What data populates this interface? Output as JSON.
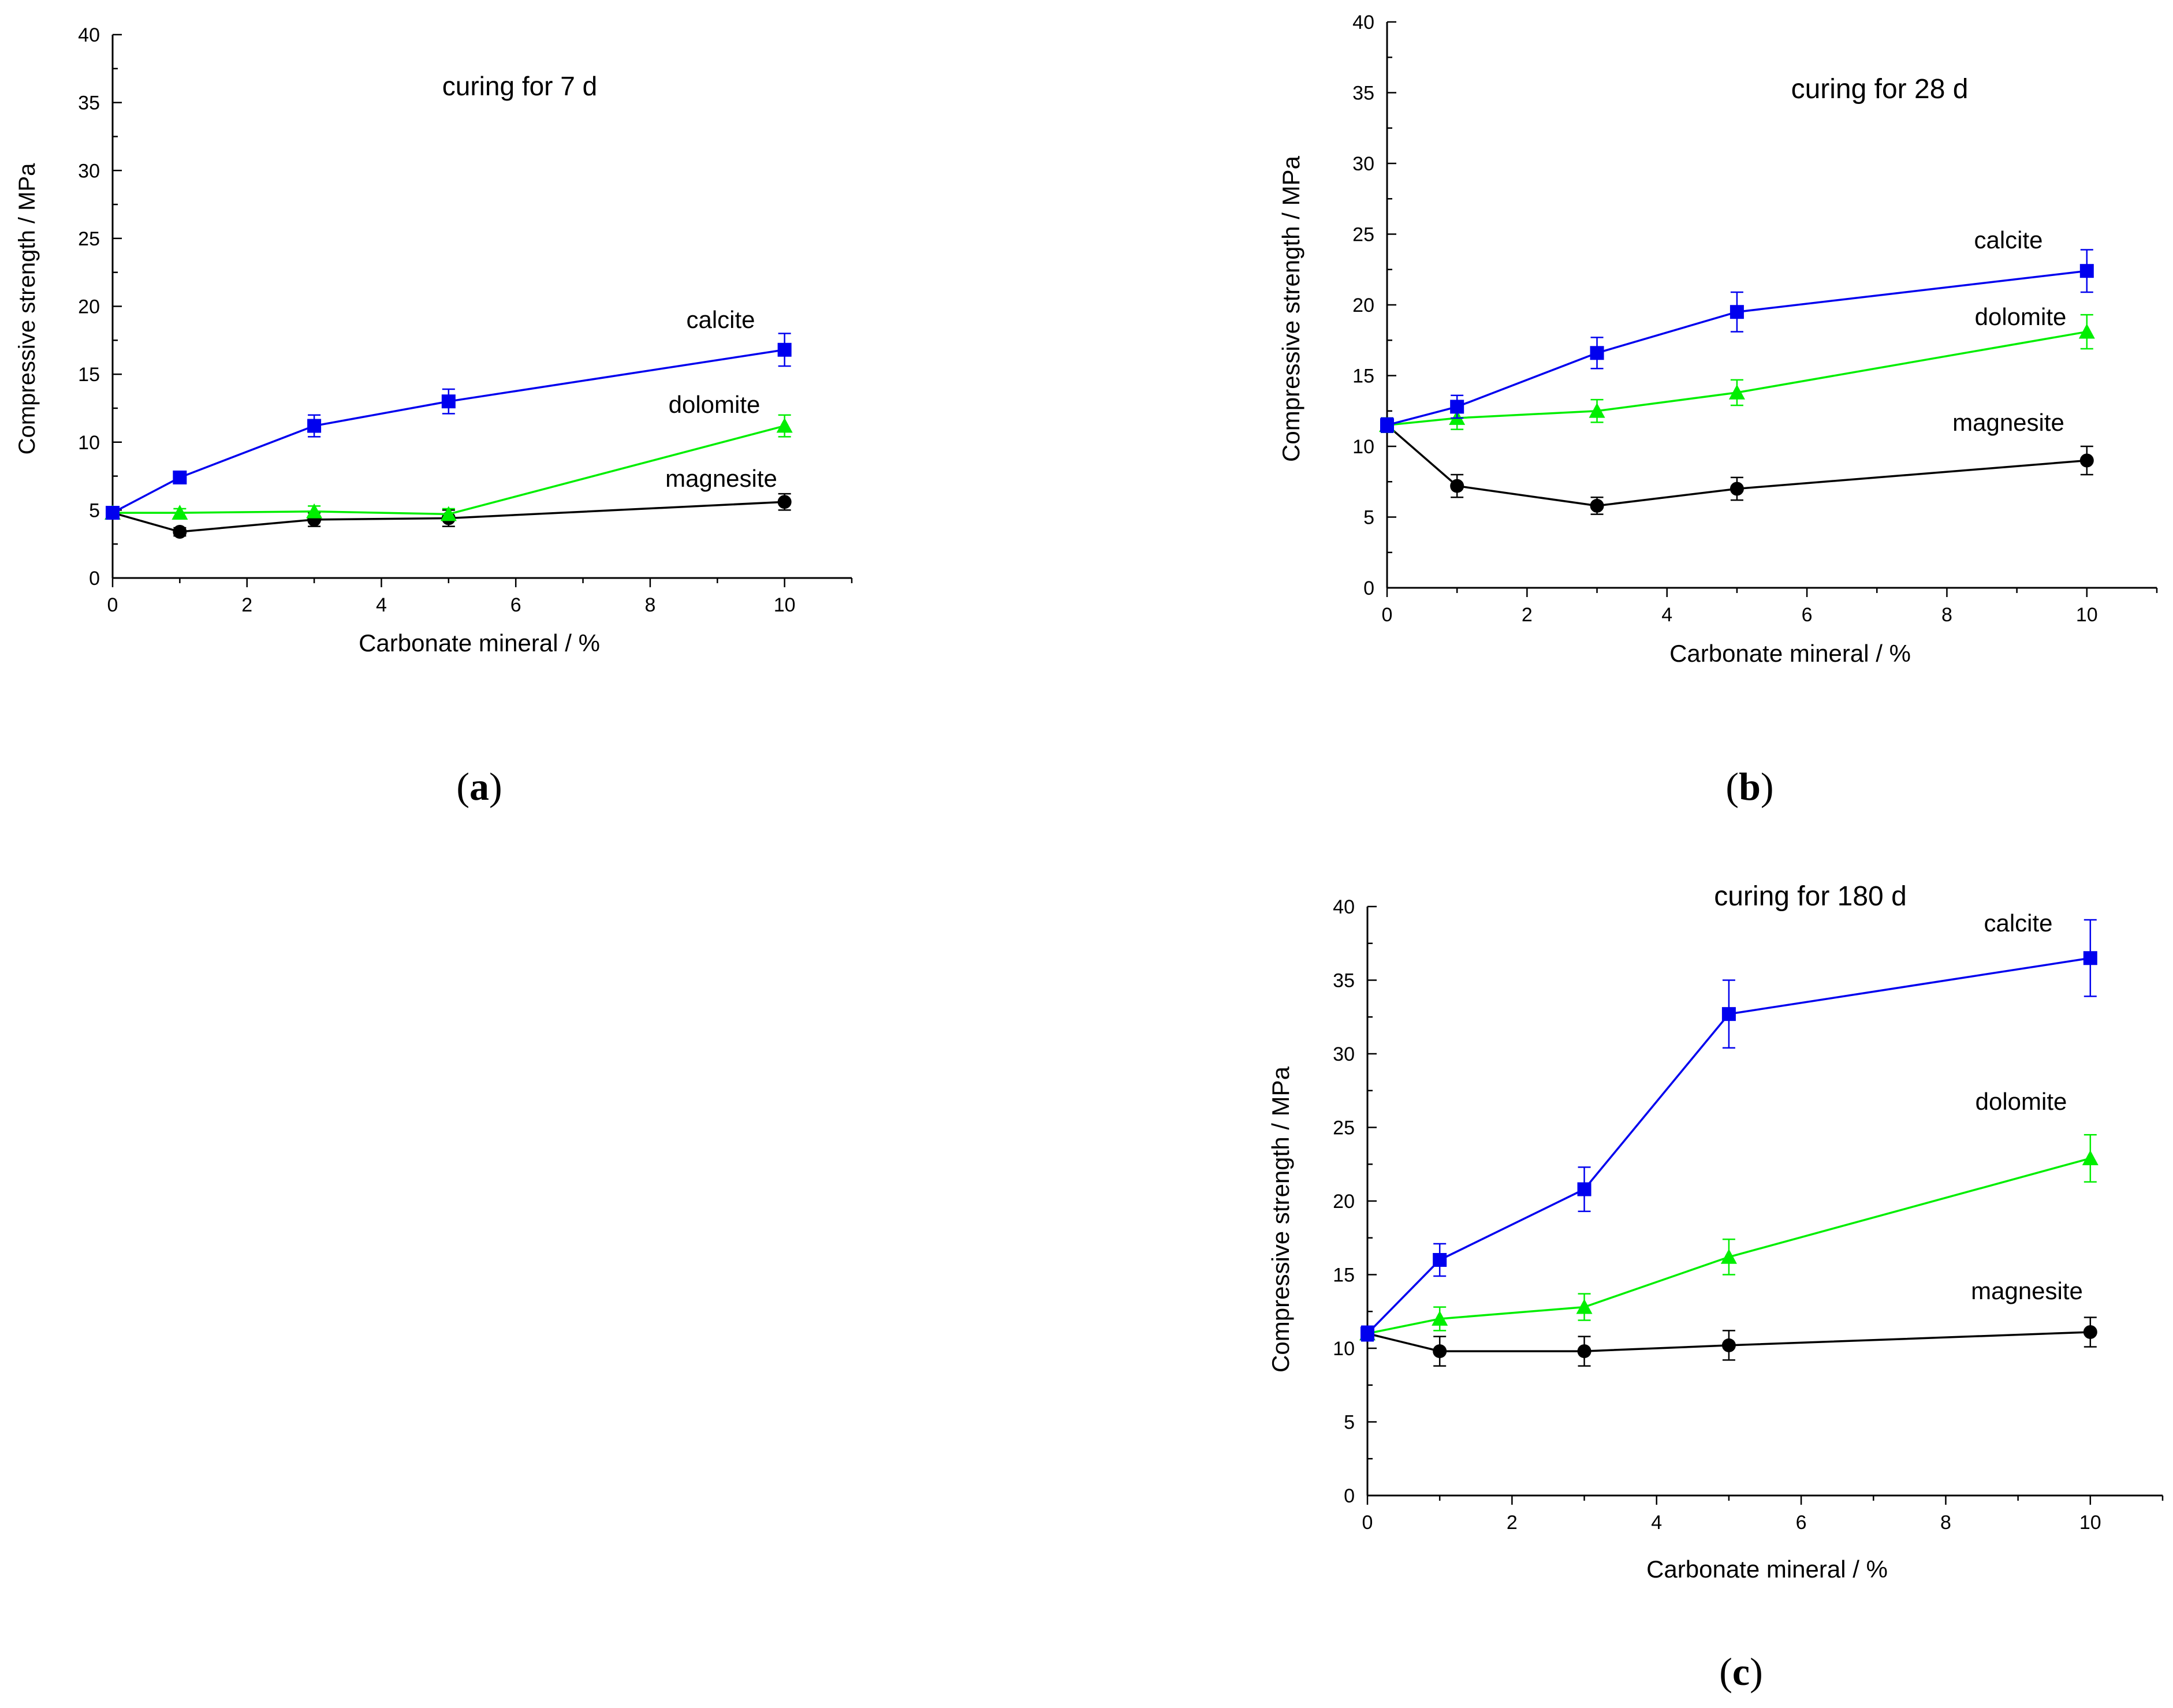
{
  "panels": [
    {
      "label_open": "(",
      "label_letter": "a",
      "label_close": ")"
    },
    {
      "label_open": "(",
      "label_letter": "b",
      "label_close": ")"
    },
    {
      "label_open": "(",
      "label_letter": "c",
      "label_close": ")"
    }
  ],
  "colors": {
    "calcite": "#0000ee",
    "dolomite": "#00ee00",
    "magnesite": "#000000",
    "axis": "#000000"
  },
  "chart_data": [
    {
      "type": "line",
      "title": "curing for 7 d",
      "xlabel": "Carbonate mineral / %",
      "ylabel": "Compressive strength / MPa",
      "xlim": [
        0,
        11
      ],
      "ylim": [
        0,
        40
      ],
      "x_ticks": [
        0,
        2,
        4,
        6,
        8,
        10
      ],
      "y_ticks": [
        0,
        5,
        10,
        15,
        20,
        25,
        30,
        35,
        40
      ],
      "x": [
        0,
        1,
        3,
        5,
        10
      ],
      "series": [
        {
          "name": "calcite",
          "marker": "square",
          "values": [
            4.8,
            7.4,
            11.2,
            13.0,
            16.8
          ],
          "errors": [
            0.3,
            0.4,
            0.8,
            0.9,
            1.2
          ]
        },
        {
          "name": "dolomite",
          "marker": "triangle",
          "values": [
            4.8,
            4.8,
            4.9,
            4.7,
            11.2
          ],
          "errors": [
            0.3,
            0.3,
            0.4,
            0.4,
            0.8
          ]
        },
        {
          "name": "magnesite",
          "marker": "circle",
          "values": [
            4.8,
            3.4,
            4.3,
            4.4,
            5.6
          ],
          "errors": [
            0.3,
            0.3,
            0.5,
            0.6,
            0.6
          ]
        }
      ]
    },
    {
      "type": "line",
      "title": "curing for 28 d",
      "xlabel": "Carbonate mineral / %",
      "ylabel": "Compressive strength / MPa",
      "xlim": [
        0,
        11
      ],
      "ylim": [
        0,
        40
      ],
      "x_ticks": [
        0,
        2,
        4,
        6,
        8,
        10
      ],
      "y_ticks": [
        0,
        5,
        10,
        15,
        20,
        25,
        30,
        35,
        40
      ],
      "x": [
        0,
        1,
        3,
        5,
        10
      ],
      "series": [
        {
          "name": "calcite",
          "marker": "square",
          "values": [
            11.5,
            12.8,
            16.6,
            19.5,
            22.4
          ],
          "errors": [
            0.5,
            0.8,
            1.1,
            1.4,
            1.5
          ]
        },
        {
          "name": "dolomite",
          "marker": "triangle",
          "values": [
            11.5,
            12.0,
            12.5,
            13.8,
            18.1
          ],
          "errors": [
            0.5,
            0.8,
            0.8,
            0.9,
            1.2
          ]
        },
        {
          "name": "magnesite",
          "marker": "circle",
          "values": [
            11.5,
            7.2,
            5.8,
            7.0,
            9.0
          ],
          "errors": [
            0.5,
            0.8,
            0.6,
            0.8,
            1.0
          ]
        }
      ]
    },
    {
      "type": "line",
      "title": "curing for 180 d",
      "xlabel": "Carbonate mineral / %",
      "ylabel": "Compressive strength / MPa",
      "xlim": [
        0,
        11
      ],
      "ylim": [
        0,
        40
      ],
      "x_ticks": [
        0,
        2,
        4,
        6,
        8,
        10
      ],
      "y_ticks": [
        0,
        5,
        10,
        15,
        20,
        25,
        30,
        35,
        40
      ],
      "x": [
        0,
        1,
        3,
        5,
        10
      ],
      "series": [
        {
          "name": "calcite",
          "marker": "square",
          "values": [
            11.0,
            16.0,
            20.8,
            32.7,
            36.5
          ],
          "errors": [
            0.5,
            1.1,
            1.5,
            2.3,
            2.6
          ]
        },
        {
          "name": "dolomite",
          "marker": "triangle",
          "values": [
            11.0,
            12.0,
            12.8,
            16.2,
            22.9
          ],
          "errors": [
            0.5,
            0.8,
            0.9,
            1.2,
            1.6
          ]
        },
        {
          "name": "magnesite",
          "marker": "circle",
          "values": [
            11.0,
            9.8,
            9.8,
            10.2,
            11.1
          ],
          "errors": [
            0.5,
            1.0,
            1.0,
            1.0,
            1.0
          ]
        }
      ]
    }
  ]
}
